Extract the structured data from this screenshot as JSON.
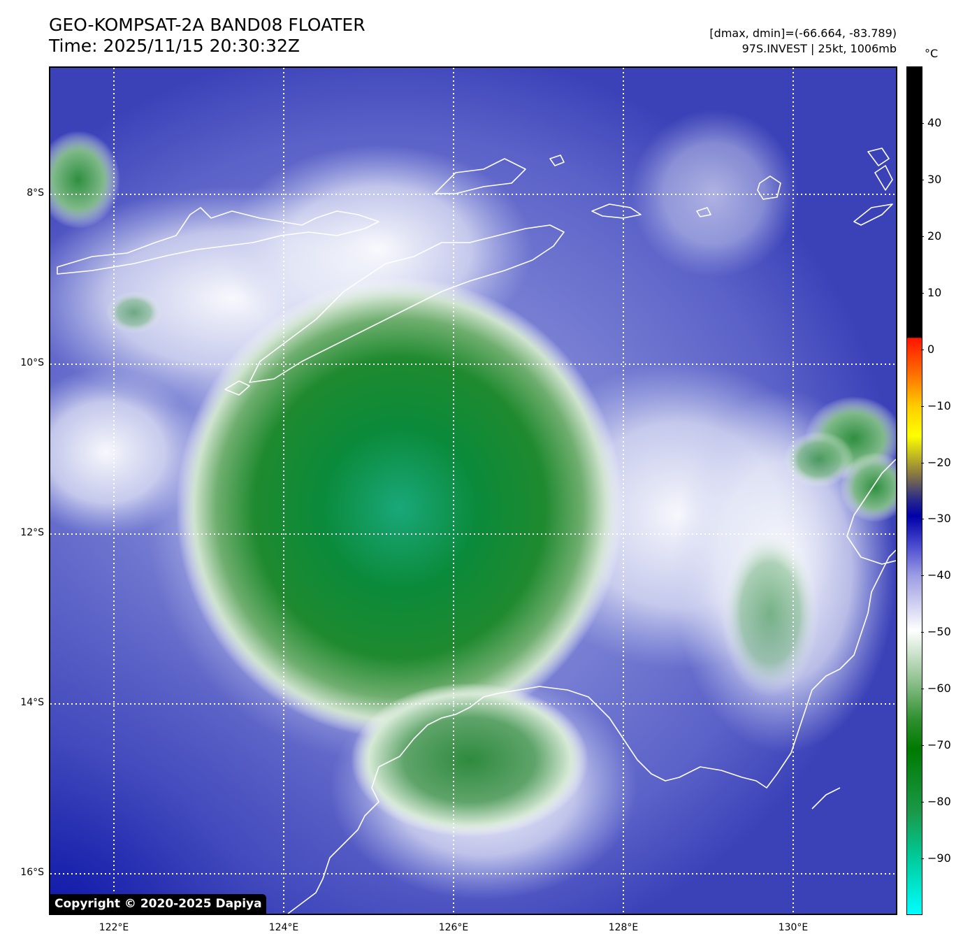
{
  "header": {
    "title": "GEO-KOMPSAT-2A BAND08 FLOATER",
    "time": "Time: 2025/11/15 20:30:32Z",
    "range": "[dmax, dmin]=(-66.664, -83.789)",
    "storm": "97S.INVEST | 25kt, 1006mb"
  },
  "map": {
    "lat_labels": [
      "8°S",
      "10°S",
      "12°S",
      "14°S",
      "16°S"
    ],
    "lon_labels": [
      "122°E",
      "124°E",
      "126°E",
      "128°E",
      "130°E"
    ],
    "lat_values": [
      -8,
      -10,
      -12,
      -14,
      -16
    ],
    "lon_values": [
      122,
      124,
      126,
      128,
      130
    ],
    "extent": {
      "lon_min": 121.24,
      "lon_max": 131.24,
      "lat_max": -6.5,
      "lat_min": -16.5
    },
    "gridlines": "dotted white",
    "copyright": "Copyright © 2020-2025 Dapiya"
  },
  "colorbar": {
    "unit": "°C",
    "tick_labels": [
      "40",
      "30",
      "20",
      "10",
      "0",
      "−10",
      "−20",
      "−30",
      "−40",
      "−50",
      "−60",
      "−70",
      "−80",
      "−90"
    ],
    "tick_values": [
      40,
      30,
      20,
      10,
      0,
      -10,
      -20,
      -30,
      -40,
      -50,
      -60,
      -70,
      -80,
      -90
    ],
    "range": [
      -100,
      50
    ]
  },
  "colors": {
    "cold_core": "#007a00",
    "coldest": "#00c896",
    "background_clouds": "#5b62c8",
    "coastline": "#ffffff"
  }
}
